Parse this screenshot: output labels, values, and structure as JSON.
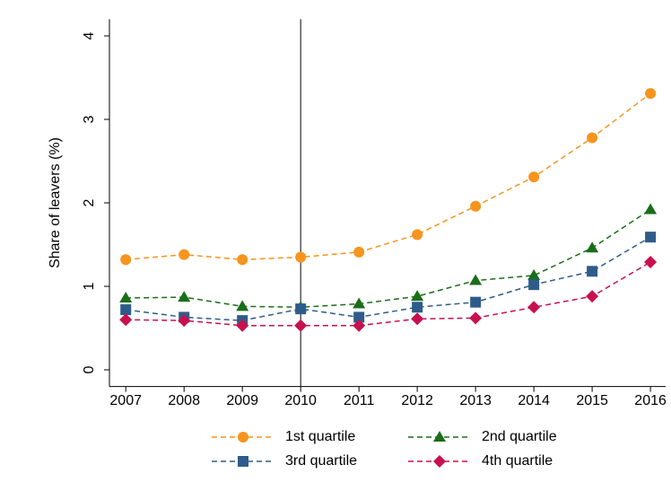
{
  "chart_data": {
    "type": "line",
    "y_label": "Share of leavers (%)",
    "x": [
      2007,
      2008,
      2009,
      2010,
      2011,
      2012,
      2013,
      2014,
      2015,
      2016
    ],
    "xlim": [
      2006.72,
      2016.26
    ],
    "xticks": [
      2007,
      2008,
      2009,
      2010,
      2011,
      2012,
      2013,
      2014,
      2015,
      2016
    ],
    "ylim": [
      -0.2,
      4.2
    ],
    "yticks": [
      0,
      1,
      2,
      3,
      4
    ],
    "vline": 2010,
    "series": [
      {
        "name": "1st quartile",
        "color": "#f7941d",
        "marker": "circle",
        "values": [
          1.32,
          1.38,
          1.32,
          1.35,
          1.41,
          1.62,
          1.96,
          2.31,
          2.78,
          3.31
        ]
      },
      {
        "name": "2nd quartile",
        "color": "#1a6e1a",
        "marker": "triangle",
        "values": [
          0.86,
          0.87,
          0.76,
          0.75,
          0.79,
          0.88,
          1.07,
          1.13,
          1.46,
          1.92
        ]
      },
      {
        "name": "3rd quartile",
        "color": "#2e5c8a",
        "marker": "square",
        "values": [
          0.72,
          0.63,
          0.59,
          0.73,
          0.63,
          0.75,
          0.81,
          1.02,
          1.18,
          1.59
        ]
      },
      {
        "name": "4th quartile",
        "color": "#c8104e",
        "marker": "diamond",
        "values": [
          0.6,
          0.59,
          0.53,
          0.53,
          0.53,
          0.61,
          0.62,
          0.75,
          0.88,
          1.29
        ]
      }
    ]
  }
}
